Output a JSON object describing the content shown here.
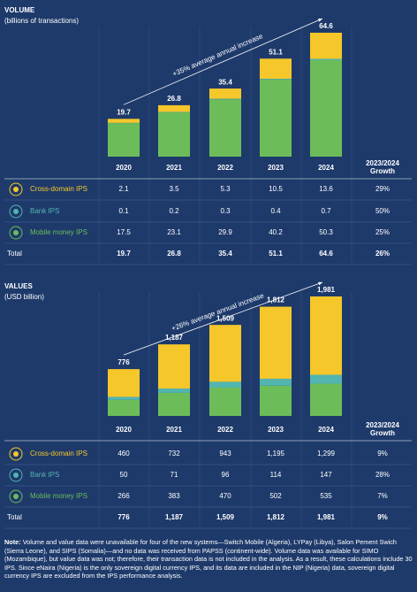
{
  "chart_data": [
    {
      "type": "stacked-bar",
      "title": "VOLUME",
      "subtitle": "(billions of transactions)",
      "annotation": "+35% average annual increase",
      "categories": [
        "2020",
        "2021",
        "2022",
        "2023",
        "2024"
      ],
      "series": [
        {
          "name": "Cross-domain IPS",
          "color": "#f5c72a",
          "values": [
            2.1,
            3.5,
            5.3,
            10.5,
            13.6
          ]
        },
        {
          "name": "Bank IPS",
          "color": "#52b5b0",
          "values": [
            0.1,
            0.2,
            0.3,
            0.4,
            0.7
          ]
        },
        {
          "name": "Mobile money IPS",
          "color": "#6cbd5a",
          "values": [
            17.5,
            23.1,
            29.9,
            40.2,
            50.3
          ]
        }
      ],
      "totals": [
        19.7,
        26.8,
        35.4,
        51.1,
        64.6
      ]
    },
    {
      "type": "stacked-bar",
      "title": "VALUES",
      "subtitle": "(USD billion)",
      "annotation": "+26% average annual increase",
      "categories": [
        "2020",
        "2021",
        "2022",
        "2023",
        "2024"
      ],
      "series": [
        {
          "name": "Cross-domain IPS",
          "color": "#f5c72a",
          "values": [
            460,
            732,
            943,
            1195,
            1299
          ]
        },
        {
          "name": "Bank IPS",
          "color": "#52b5b0",
          "values": [
            50,
            71,
            96,
            114,
            147
          ]
        },
        {
          "name": "Mobile money IPS",
          "color": "#6cbd5a",
          "values": [
            266,
            383,
            470,
            502,
            535
          ]
        }
      ],
      "totals": [
        776,
        1187,
        1509,
        1812,
        1981
      ],
      "totals_labels": [
        "776",
        "1,187",
        "1,509",
        "1,812",
        "1,981"
      ]
    }
  ],
  "tables": [
    {
      "growth_header": [
        "2023/2024",
        "Growth"
      ],
      "total_label": "Total",
      "rows": [
        [
          "2.1",
          "3.5",
          "5.3",
          "10.5",
          "13.6",
          "29%"
        ],
        [
          "0.1",
          "0.2",
          "0.3",
          "0.4",
          "0.7",
          "50%"
        ],
        [
          "17.5",
          "23.1",
          "29.9",
          "40.2",
          "50.3",
          "25%"
        ],
        [
          "19.7",
          "26.8",
          "35.4",
          "51.1",
          "64.6",
          "26%"
        ]
      ]
    },
    {
      "growth_header": [
        "2023/2024",
        "Growth"
      ],
      "total_label": "Total",
      "rows": [
        [
          "460",
          "732",
          "943",
          "1,195",
          "1,299",
          "9%"
        ],
        [
          "50",
          "71",
          "96",
          "114",
          "147",
          "28%"
        ],
        [
          "266",
          "383",
          "470",
          "502",
          "535",
          "7%"
        ],
        [
          "776",
          "1,187",
          "1,509",
          "1,812",
          "1,981",
          "9%"
        ]
      ]
    }
  ],
  "note_label": "Note:",
  "note": "Volume and value data were unavailable for four of the new systems—Switch Mobile (Algeria), LYPay (Libya), Salon Pement Swich (Sierra Leone), and SIPS (Somalia)—and no data was received from PAPSS (continent-wide). Volume data was available for SIMO (Mozambique), but value data was not; therefore, their transaction data is not included in the analysis. As a result, these calculations include 30 IPS. Since eNaira (Nigeria) is the only sovereign digital currency IPS, and its data are included in the NIP (Nigeria) data, sovereign digital currency IPS are excluded from the IPS performance analysis."
}
